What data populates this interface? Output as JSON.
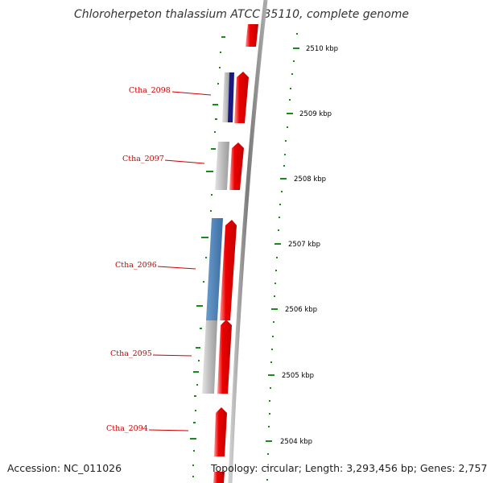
{
  "title": "Chloroherpeton thalassium ATCC 35110, complete genome",
  "footer": {
    "accession": "Accession: NC_011026",
    "topology": "Topology: circular; Length: 3,293,456 bp; Genes: 2,757"
  },
  "scale_ticks": [
    "2510 kbp",
    "2509 kbp",
    "2508 kbp",
    "2507 kbp",
    "2506 kbp",
    "2505 kbp",
    "2504 kbp"
  ],
  "gene_labels": [
    "Ctha_2098",
    "Ctha_2097",
    "Ctha_2096",
    "Ctha_2095",
    "Ctha_2094"
  ],
  "colors": {
    "forward_gene": "#ee0000",
    "gene_label": "#cc0000",
    "gc_skew_dash": "#1a8a1a",
    "backbone": "#888888",
    "blue_feature": "#4a7fb5",
    "dark_blue_feature": "#1a1a80",
    "grey_feature": "#bbbbbb"
  }
}
